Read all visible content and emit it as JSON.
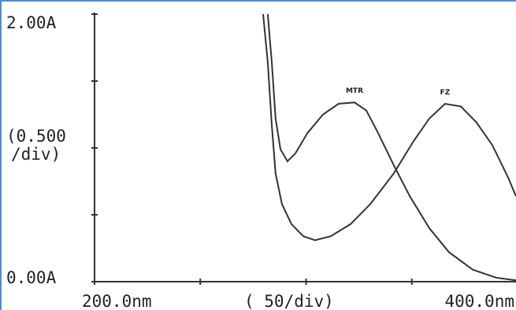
{
  "chart_data": {
    "type": "line",
    "y_axis_label": [
      "(0.500",
      "/div)"
    ],
    "x_axis_label": "( 50/div)",
    "xlim": [
      200,
      400
    ],
    "xticks": [
      {
        "value": 200,
        "label": "200.0nm"
      },
      {
        "value": 400,
        "label": "400.0nm"
      }
    ],
    "xminorticks": [
      250,
      300,
      350
    ],
    "ylim": [
      0,
      2
    ],
    "yticks": [
      {
        "value": 0,
        "label": "0.00A"
      },
      {
        "value": 2,
        "label": "2.00A"
      }
    ],
    "yminorticks": [
      0.5,
      1,
      1.5
    ],
    "series": [
      {
        "name": "MTR",
        "color": "#333333",
        "x": [
          281.9,
          283.8,
          285.6,
          287.9,
          291.2,
          295.0,
          300.6,
          308.0,
          315.4,
          322.9,
          328.5,
          334.1,
          341.5,
          349.0,
          358.3,
          367.6,
          378.8,
          389.9,
          399.2
        ],
        "values": [
          2.0,
          1.64,
          1.22,
          0.99,
          0.9,
          0.96,
          1.11,
          1.25,
          1.33,
          1.34,
          1.28,
          1.11,
          0.87,
          0.64,
          0.4,
          0.22,
          0.09,
          0.03,
          0.01
        ]
      },
      {
        "name": "FZ",
        "color": "#333333",
        "x": [
          279.7,
          281.9,
          283.8,
          285.6,
          288.6,
          293.1,
          298.7,
          304.3,
          311.7,
          321.0,
          330.4,
          341.5,
          350.8,
          358.3,
          365.7,
          373.2,
          380.6,
          388.1,
          395.5,
          399.2
        ],
        "values": [
          2.0,
          1.64,
          1.17,
          0.81,
          0.58,
          0.43,
          0.34,
          0.31,
          0.34,
          0.43,
          0.58,
          0.81,
          1.05,
          1.22,
          1.33,
          1.31,
          1.19,
          1.02,
          0.78,
          0.64
        ]
      }
    ]
  }
}
